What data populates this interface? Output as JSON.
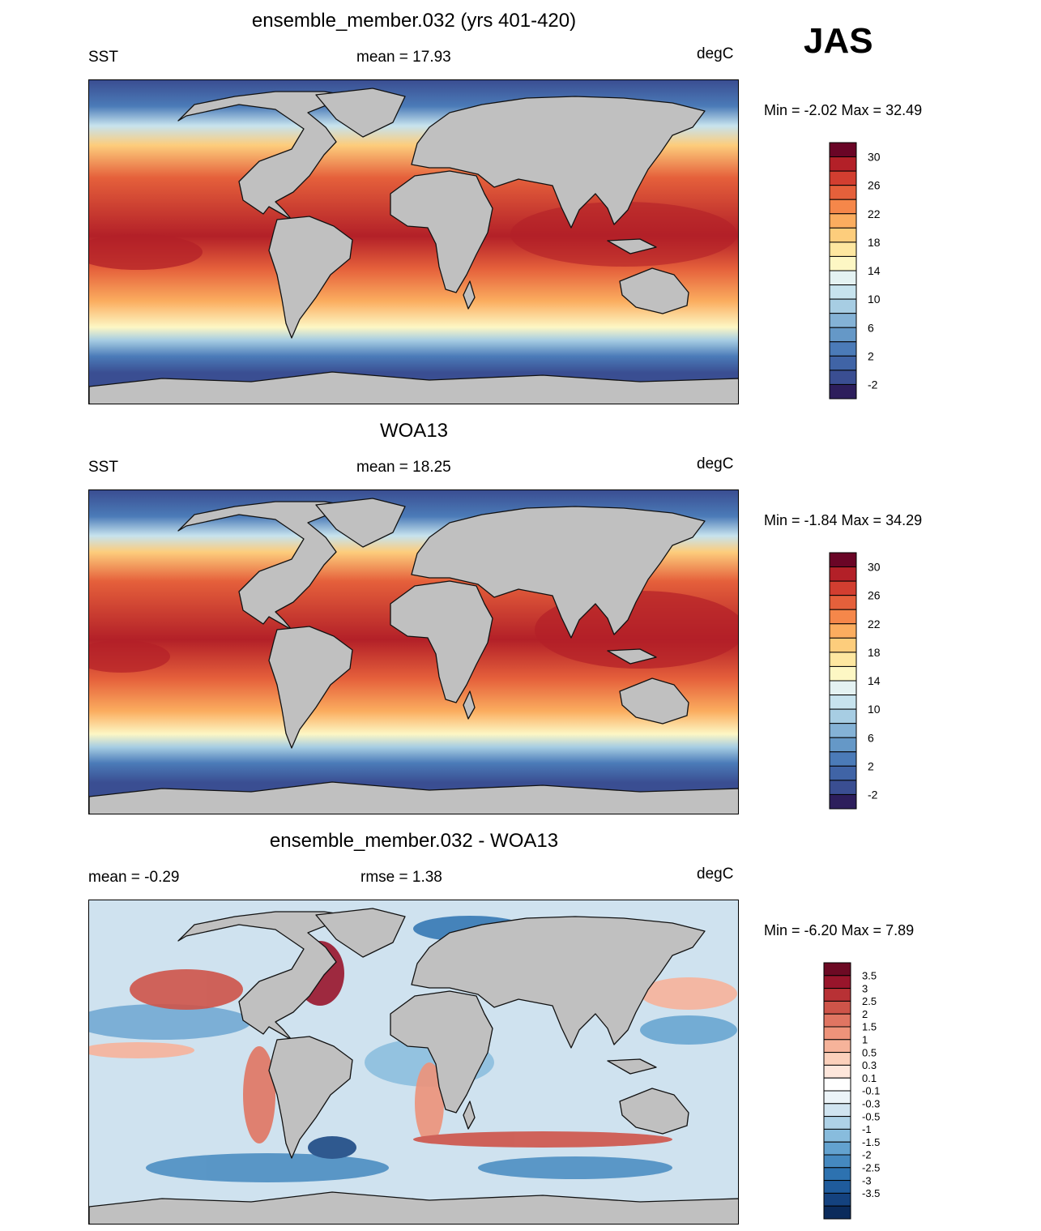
{
  "season": "JAS",
  "panels": [
    {
      "id": "model",
      "title": "ensemble_member.032 (yrs 401-420)",
      "left_label": "SST",
      "center_label": "mean =  17.93",
      "units": "degC",
      "minmax": "Min =  -2.02 Max =  32.49",
      "colorbar": {
        "colors": [
          "#2d1e5c",
          "#3a4e92",
          "#4064a6",
          "#4b7bb8",
          "#6598c7",
          "#84b2d6",
          "#a7cde3",
          "#c7e3ee",
          "#e4f2f2",
          "#fdf7c4",
          "#fee7a0",
          "#fdcd7c",
          "#fbad5f",
          "#f5874a",
          "#e5603b",
          "#d23e30",
          "#b32028",
          "#6a0526"
        ],
        "labels": [
          "30",
          "26",
          "22",
          "18",
          "14",
          "10",
          "6",
          "2",
          "-2"
        ]
      }
    },
    {
      "id": "obs",
      "title": "WOA13",
      "left_label": "SST",
      "center_label": "mean =  18.25",
      "units": "degC",
      "minmax": "Min =  -1.84 Max =  34.29",
      "colorbar": {
        "colors": [
          "#2d1e5c",
          "#3a4e92",
          "#4064a6",
          "#4b7bb8",
          "#6598c7",
          "#84b2d6",
          "#a7cde3",
          "#c7e3ee",
          "#e4f2f2",
          "#fdf7c4",
          "#fee7a0",
          "#fdcd7c",
          "#fbad5f",
          "#f5874a",
          "#e5603b",
          "#d23e30",
          "#b32028",
          "#6a0526"
        ],
        "labels": [
          "30",
          "26",
          "22",
          "18",
          "14",
          "10",
          "6",
          "2",
          "-2"
        ]
      }
    },
    {
      "id": "diff",
      "title": "ensemble_member.032 - WOA13",
      "left_label": "mean =  -0.29",
      "center_label": "rmse =   1.38",
      "units": "degC",
      "minmax": "Min =  -6.20 Max =   7.89",
      "colorbar": {
        "colors": [
          "#0b2b5c",
          "#14427f",
          "#1f5b9c",
          "#2d72b0",
          "#4589c0",
          "#63a2cf",
          "#88bcdd",
          "#aed2e7",
          "#d0e4f0",
          "#ecf4f8",
          "#ffffff",
          "#fde6db",
          "#fbd0bb",
          "#f6b39a",
          "#ee937a",
          "#e07562",
          "#ce5449",
          "#b83135",
          "#98152b",
          "#6d0a24"
        ],
        "labels": [
          "3.5",
          "3",
          "2.5",
          "2",
          "1.5",
          "1",
          "0.5",
          "0.3",
          "0.1",
          "-0.1",
          "-0.3",
          "-0.5",
          "-1",
          "-1.5",
          "-2",
          "-2.5",
          "-3",
          "-3.5"
        ]
      }
    }
  ]
}
